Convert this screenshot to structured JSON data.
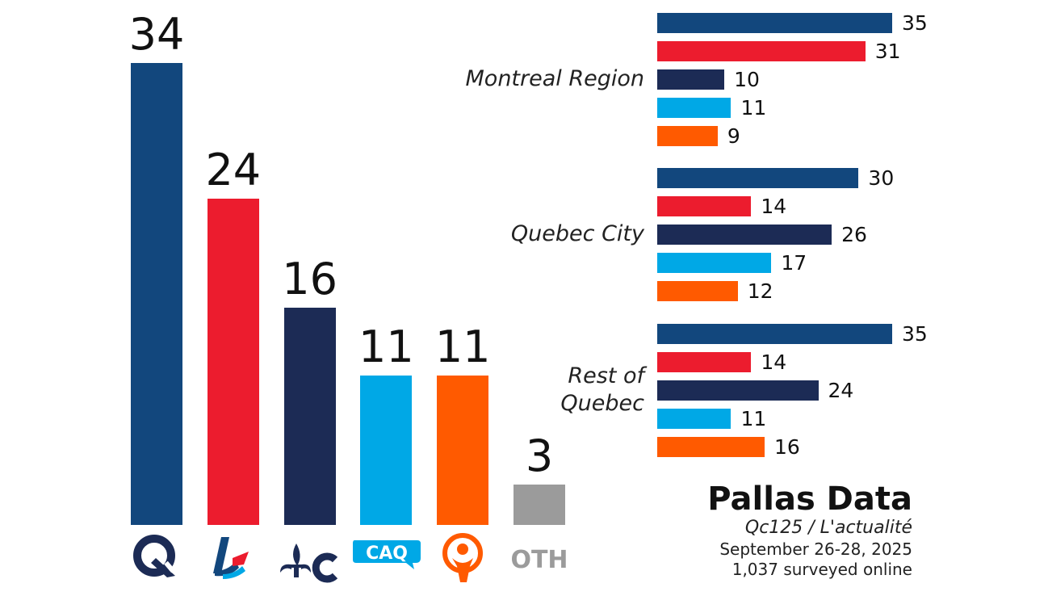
{
  "chart_data": [
    {
      "type": "bar",
      "categories": [
        "PQ",
        "PLQ",
        "PCQ",
        "CAQ",
        "QS",
        "OTH"
      ],
      "values": [
        34,
        24,
        16,
        11,
        11,
        3
      ],
      "value_labels": [
        "34",
        "24",
        "16",
        "11",
        "11",
        "3"
      ],
      "colors": [
        "#12477d",
        "#ec1c2e",
        "#1c2b55",
        "#00a8e6",
        "#ff5a00",
        "#9b9b9b"
      ],
      "category_icons": [
        "pq-logo-icon",
        "plq-logo-icon",
        "pcq-fleur-de-lis-icon",
        "caq-logo-icon",
        "qs-logo-icon",
        "oth-text"
      ],
      "oth_label": "OTH",
      "ylim": [
        0,
        34
      ]
    },
    {
      "type": "bar",
      "orientation": "horizontal",
      "regions": [
        {
          "label_lines": [
            "Montreal Region"
          ],
          "values": [
            35,
            31,
            10,
            11,
            9
          ]
        },
        {
          "label_lines": [
            "Quebec City"
          ],
          "values": [
            30,
            14,
            26,
            17,
            12
          ]
        },
        {
          "label_lines": [
            "Rest of",
            "Quebec"
          ],
          "values": [
            35,
            14,
            24,
            11,
            16
          ]
        }
      ],
      "series_colors": [
        "#12477d",
        "#ec1c2e",
        "#1c2b55",
        "#00a8e6",
        "#ff5a00"
      ],
      "xlim": [
        0,
        35
      ]
    }
  ],
  "brand": {
    "title": "Pallas Data",
    "subtitle": "Qc125 / L'actualité",
    "dates": "September 26-28, 2025",
    "sample": "1,037 surveyed online"
  }
}
